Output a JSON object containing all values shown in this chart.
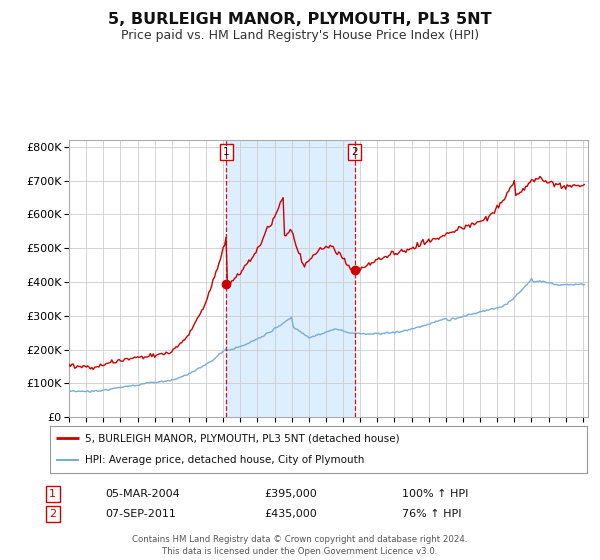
{
  "title": "5, BURLEIGH MANOR, PLYMOUTH, PL3 5NT",
  "subtitle": "Price paid vs. HM Land Registry's House Price Index (HPI)",
  "title_fontsize": 11.5,
  "subtitle_fontsize": 9,
  "bg_color": "#ffffff",
  "plot_bg_color": "#ffffff",
  "grid_color": "#cccccc",
  "red_line_color": "#cc0000",
  "blue_line_color": "#7aadd4",
  "shade_color": "#ddeeff",
  "sale1_date_num": 2004.17,
  "sale1_price": 395000,
  "sale2_date_num": 2011.67,
  "sale2_price": 435000,
  "sale1_label": "1",
  "sale2_label": "2",
  "legend_line1": "5, BURLEIGH MANOR, PLYMOUTH, PL3 5NT (detached house)",
  "legend_line2": "HPI: Average price, detached house, City of Plymouth",
  "note1_num": "1",
  "note1_date": "05-MAR-2004",
  "note1_price": "£395,000",
  "note1_pct": "100% ↑ HPI",
  "note2_num": "2",
  "note2_date": "07-SEP-2011",
  "note2_price": "£435,000",
  "note2_pct": "76% ↑ HPI",
  "footer": "Contains HM Land Registry data © Crown copyright and database right 2024.\nThis data is licensed under the Open Government Licence v3.0.",
  "ylim": [
    0,
    820000
  ],
  "xlim_start": 1995.0,
  "xlim_end": 2025.3
}
